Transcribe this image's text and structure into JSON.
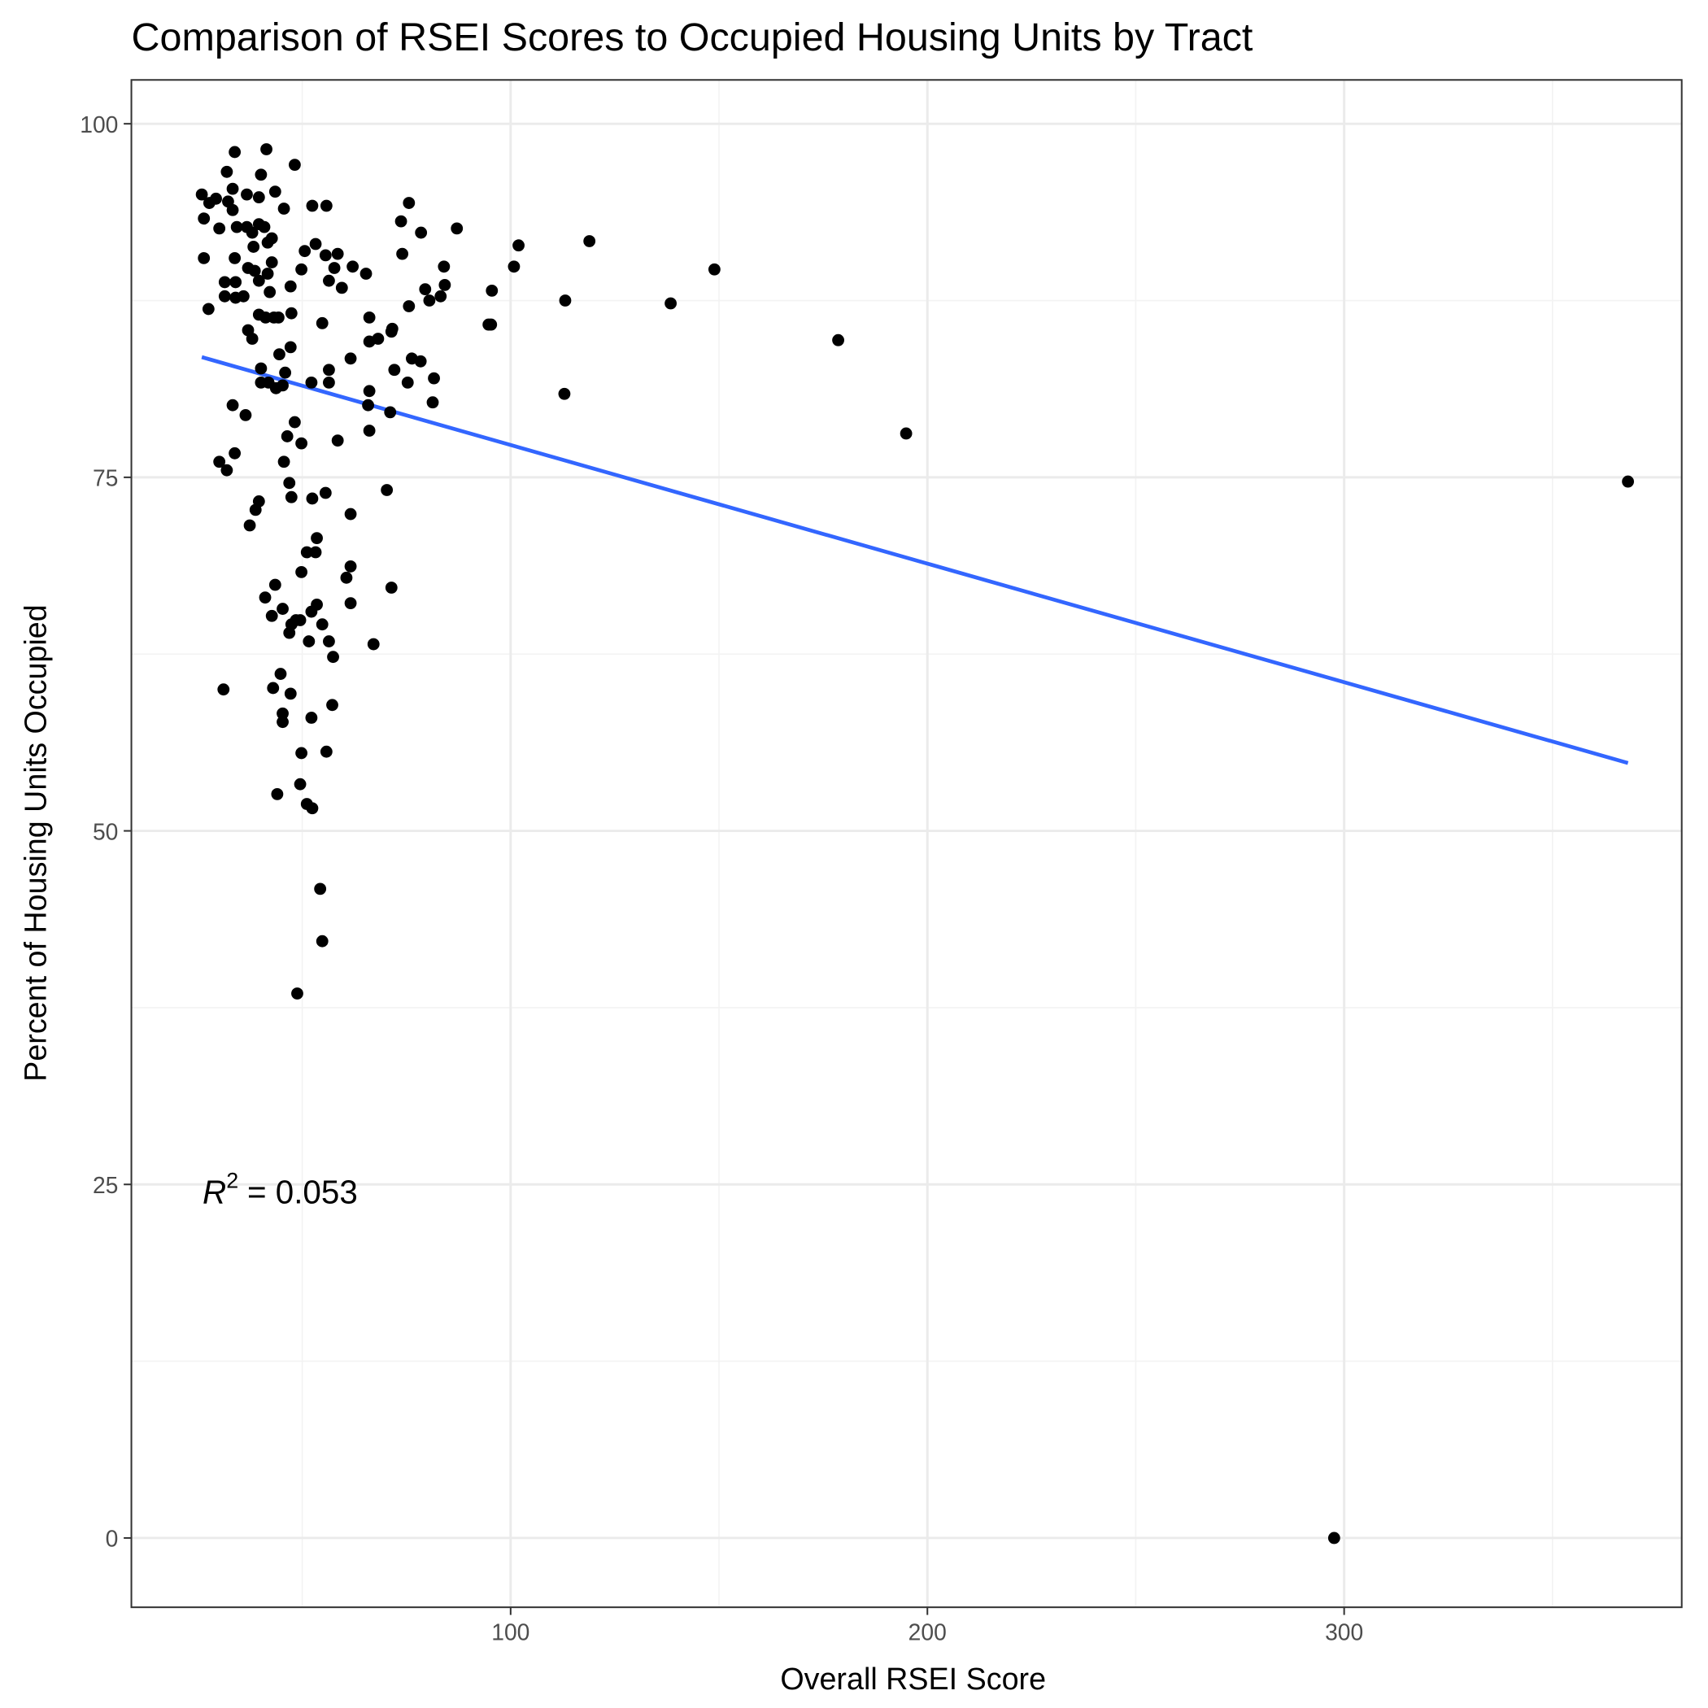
{
  "chart_data": {
    "type": "scatter",
    "title": "Comparison of RSEI Scores to Occupied Housing Units by Tract",
    "xlabel": "Overall RSEI Score",
    "ylabel": "Percent of Housing Units Occupied",
    "xlim": [
      9,
      381
    ],
    "ylim": [
      -4.9,
      103.1
    ],
    "xticks": [
      100,
      200,
      300
    ],
    "yticks": [
      0,
      25,
      50,
      75,
      100
    ],
    "x_minor": [
      50,
      150,
      250,
      350
    ],
    "y_minor": [
      12.5,
      37.5,
      62.5,
      87.5
    ],
    "grid": true,
    "point_color": "#000000",
    "fit_line": {
      "color": "#3366FF",
      "x": [
        25.9,
        368.1
      ],
      "y": [
        83.5,
        54.8
      ]
    },
    "annotation": {
      "r_label": "R",
      "superscript": "2",
      "value": "= 0.053"
    },
    "points": [
      [
        25.9,
        95.0
      ],
      [
        26.4,
        93.3
      ],
      [
        27.7,
        94.4
      ],
      [
        26.4,
        90.5
      ],
      [
        27.5,
        86.9
      ],
      [
        29.3,
        94.7
      ],
      [
        30.1,
        92.6
      ],
      [
        31.9,
        96.6
      ],
      [
        32.2,
        94.5
      ],
      [
        33.3,
        95.4
      ],
      [
        33.8,
        98.0
      ],
      [
        31.4,
        88.8
      ],
      [
        31.4,
        87.8
      ],
      [
        33.8,
        90.5
      ],
      [
        33.3,
        93.9
      ],
      [
        34.3,
        92.7
      ],
      [
        36.7,
        95.0
      ],
      [
        36.7,
        92.7
      ],
      [
        38.0,
        92.3
      ],
      [
        38.3,
        91.3
      ],
      [
        39.6,
        92.9
      ],
      [
        40.1,
        96.4
      ],
      [
        39.6,
        94.8
      ],
      [
        41.4,
        98.2
      ],
      [
        40.9,
        92.7
      ],
      [
        41.7,
        91.6
      ],
      [
        42.7,
        91.9
      ],
      [
        43.5,
        95.2
      ],
      [
        45.6,
        94.0
      ],
      [
        48.2,
        97.1
      ],
      [
        34.0,
        88.8
      ],
      [
        34.0,
        87.7
      ],
      [
        35.9,
        87.8
      ],
      [
        37.0,
        89.8
      ],
      [
        38.6,
        89.6
      ],
      [
        39.6,
        88.9
      ],
      [
        41.7,
        89.4
      ],
      [
        42.2,
        88.1
      ],
      [
        37.0,
        85.4
      ],
      [
        38.0,
        84.8
      ],
      [
        39.6,
        86.5
      ],
      [
        41.2,
        86.3
      ],
      [
        43.2,
        86.3
      ],
      [
        44.3,
        86.3
      ],
      [
        42.7,
        90.2
      ],
      [
        47.2,
        88.5
      ],
      [
        47.4,
        86.6
      ],
      [
        47.2,
        84.2
      ],
      [
        44.5,
        83.7
      ],
      [
        45.9,
        82.4
      ],
      [
        40.1,
        82.7
      ],
      [
        40.1,
        81.7
      ],
      [
        41.9,
        81.7
      ],
      [
        43.7,
        81.3
      ],
      [
        45.3,
        81.5
      ],
      [
        33.3,
        80.1
      ],
      [
        36.4,
        79.4
      ],
      [
        48.2,
        78.9
      ],
      [
        46.4,
        77.9
      ],
      [
        49.8,
        77.4
      ],
      [
        30.1,
        76.1
      ],
      [
        31.9,
        75.5
      ],
      [
        33.8,
        76.7
      ],
      [
        45.6,
        76.1
      ],
      [
        46.9,
        74.6
      ],
      [
        47.4,
        73.6
      ],
      [
        39.6,
        73.3
      ],
      [
        38.8,
        72.7
      ],
      [
        37.4,
        71.6
      ],
      [
        49.8,
        89.7
      ],
      [
        50.6,
        91.0
      ],
      [
        52.4,
        94.2
      ],
      [
        53.2,
        91.5
      ],
      [
        55.8,
        94.2
      ],
      [
        54.8,
        85.9
      ],
      [
        55.6,
        90.7
      ],
      [
        56.4,
        88.9
      ],
      [
        57.7,
        89.8
      ],
      [
        58.5,
        90.8
      ],
      [
        59.5,
        88.4
      ],
      [
        62.1,
        89.9
      ],
      [
        65.3,
        89.4
      ],
      [
        56.4,
        82.6
      ],
      [
        56.4,
        81.7
      ],
      [
        52.2,
        81.7
      ],
      [
        61.6,
        83.4
      ],
      [
        66.1,
        86.3
      ],
      [
        66.1,
        84.6
      ],
      [
        68.2,
        84.8
      ],
      [
        71.4,
        85.3
      ],
      [
        71.6,
        85.5
      ],
      [
        72.1,
        82.6
      ],
      [
        66.1,
        81.1
      ],
      [
        65.8,
        80.1
      ],
      [
        71.1,
        79.6
      ],
      [
        66.1,
        78.3
      ],
      [
        58.5,
        77.6
      ],
      [
        74.0,
        90.8
      ],
      [
        73.7,
        93.1
      ],
      [
        75.6,
        94.4
      ],
      [
        78.5,
        92.3
      ],
      [
        75.6,
        87.1
      ],
      [
        79.5,
        88.3
      ],
      [
        80.5,
        87.5
      ],
      [
        83.2,
        87.8
      ],
      [
        84.0,
        89.9
      ],
      [
        84.2,
        88.6
      ],
      [
        87.1,
        92.6
      ],
      [
        76.3,
        83.4
      ],
      [
        78.4,
        83.2
      ],
      [
        75.3,
        81.7
      ],
      [
        81.6,
        82.0
      ],
      [
        81.3,
        80.3
      ],
      [
        70.3,
        74.1
      ],
      [
        55.6,
        73.9
      ],
      [
        52.4,
        73.5
      ],
      [
        61.6,
        72.4
      ],
      [
        53.5,
        70.7
      ],
      [
        53.2,
        69.7
      ],
      [
        51.1,
        69.7
      ],
      [
        49.8,
        68.3
      ],
      [
        61.6,
        68.7
      ],
      [
        60.6,
        67.9
      ],
      [
        71.4,
        67.2
      ],
      [
        41.1,
        66.5
      ],
      [
        43.5,
        67.4
      ],
      [
        45.3,
        65.7
      ],
      [
        53.5,
        66.0
      ],
      [
        52.2,
        65.5
      ],
      [
        61.6,
        66.1
      ],
      [
        42.7,
        65.2
      ],
      [
        48.5,
        64.9
      ],
      [
        47.4,
        64.6
      ],
      [
        49.5,
        64.9
      ],
      [
        46.9,
        64.0
      ],
      [
        54.8,
        64.6
      ],
      [
        56.4,
        63.4
      ],
      [
        51.6,
        63.4
      ],
      [
        57.4,
        62.3
      ],
      [
        67.1,
        63.2
      ],
      [
        44.8,
        61.1
      ],
      [
        43.0,
        60.1
      ],
      [
        47.2,
        59.7
      ],
      [
        31.1,
        60.0
      ],
      [
        57.2,
        58.9
      ],
      [
        45.3,
        58.3
      ],
      [
        45.3,
        57.7
      ],
      [
        52.2,
        58.0
      ],
      [
        49.8,
        55.5
      ],
      [
        55.8,
        55.6
      ],
      [
        49.5,
        53.3
      ],
      [
        44.0,
        52.6
      ],
      [
        51.1,
        51.9
      ],
      [
        52.4,
        51.6
      ],
      [
        54.3,
        45.9
      ],
      [
        54.8,
        42.2
      ],
      [
        48.8,
        38.5
      ],
      [
        94.7,
        85.8
      ],
      [
        95.3,
        85.8
      ],
      [
        95.5,
        88.2
      ],
      [
        100.8,
        89.9
      ],
      [
        101.9,
        91.4
      ],
      [
        113.1,
        87.5
      ],
      [
        112.9,
        80.9
      ],
      [
        118.9,
        91.7
      ],
      [
        138.4,
        87.3
      ],
      [
        148.9,
        89.7
      ],
      [
        178.6,
        84.7
      ],
      [
        194.9,
        78.1
      ],
      [
        297.6,
        0.0
      ],
      [
        368.1,
        74.7
      ]
    ]
  }
}
